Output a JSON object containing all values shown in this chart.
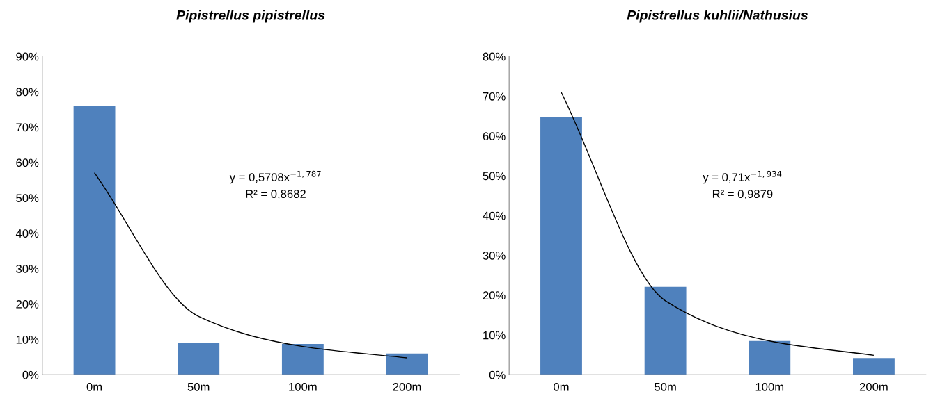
{
  "chart_data": [
    {
      "type": "bar",
      "title": "Pipistrellus pipistrellus",
      "categories": [
        "0m",
        "50m",
        "100m",
        "200m"
      ],
      "grid": false,
      "series": [
        {
          "color": "#4f81bd",
          "values": [
            76,
            8.9,
            8.7,
            6.0
          ]
        },
        {
          "type": "line",
          "color": "#000000",
          "values": [
            57.1,
            16.5,
            8.0,
            4.8
          ]
        }
      ],
      "ylim": [
        0,
        90
      ],
      "yticks": [
        {
          "value": 0,
          "label": "0%"
        },
        {
          "value": 10,
          "label": "10%"
        },
        {
          "value": 20,
          "label": "20%"
        },
        {
          "value": 30,
          "label": "30%"
        },
        {
          "value": 40,
          "label": "40%"
        },
        {
          "value": 50,
          "label": "50%"
        },
        {
          "value": 60,
          "label": "60%"
        },
        {
          "value": 70,
          "label": "70%"
        },
        {
          "value": 80,
          "label": "80%"
        },
        {
          "value": 90,
          "label": "90%"
        }
      ],
      "annotations": [
        "y = 0,5708x$^{−1,787}$",
        "R² = 0,8682"
      ]
    },
    {
      "type": "bar",
      "title": "Pipistrellus kuhlii/Nathusius",
      "categories": [
        "0m",
        "50m",
        "100m",
        "200m"
      ],
      "grid": false,
      "series": [
        {
          "color": "#4f81bd",
          "values": [
            64.7,
            22.1,
            8.5,
            4.2
          ]
        },
        {
          "type": "line",
          "color": "#000000",
          "values": [
            71.0,
            18.6,
            8.5,
            4.9
          ]
        }
      ],
      "ylim": [
        0,
        80
      ],
      "yticks": [
        {
          "value": 0,
          "label": "0%"
        },
        {
          "value": 10,
          "label": "10%"
        },
        {
          "value": 20,
          "label": "20%"
        },
        {
          "value": 30,
          "label": "30%"
        },
        {
          "value": 40,
          "label": "40%"
        },
        {
          "value": 50,
          "label": "50%"
        },
        {
          "value": 60,
          "label": "60%"
        },
        {
          "value": 70,
          "label": "70%"
        },
        {
          "value": 80,
          "label": "80%"
        }
      ],
      "annotations": [
        "y = 0,71x$^{−1,934}$",
        "R² = 0,9879"
      ]
    }
  ]
}
